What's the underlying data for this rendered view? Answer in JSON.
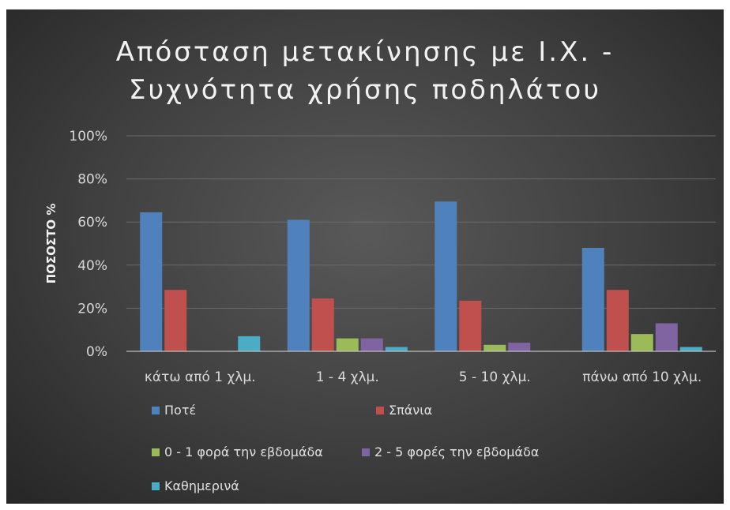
{
  "chart_data": {
    "type": "bar",
    "title": [
      "Απόσταση μετακίνησης με Ι.Χ. -",
      "Συχνότητα χρήσης ποδηλάτου"
    ],
    "ylabel": "ΠΟΣΟΣΤΟ %",
    "xlabel": "",
    "ylim": [
      0,
      100
    ],
    "yticks": [
      "0%",
      "20%",
      "40%",
      "60%",
      "80%",
      "100%"
    ],
    "grid": true,
    "legend_position": "bottom",
    "categories": [
      "κάτω από 1 χλμ.",
      "1 - 4 χλμ.",
      "5 - 10 χλμ.",
      "πάνω από 10 χλμ."
    ],
    "series": [
      {
        "name": "Ποτέ",
        "color": "#4f81bd",
        "values": [
          64.5,
          61,
          69.5,
          48
        ]
      },
      {
        "name": "Σπάνια",
        "color": "#c0504d",
        "values": [
          28.5,
          24.5,
          23.5,
          28.5
        ]
      },
      {
        "name": "0 - 1 φορά την εβδομάδα",
        "color": "#9bbb59",
        "values": [
          0,
          6,
          3,
          8
        ]
      },
      {
        "name": "2 - 5 φορές την εβδομάδα",
        "color": "#8064a2",
        "values": [
          0,
          6,
          4,
          13
        ]
      },
      {
        "name": "Καθημερινά",
        "color": "#4bacc6",
        "values": [
          7,
          2,
          0,
          2
        ]
      }
    ]
  }
}
